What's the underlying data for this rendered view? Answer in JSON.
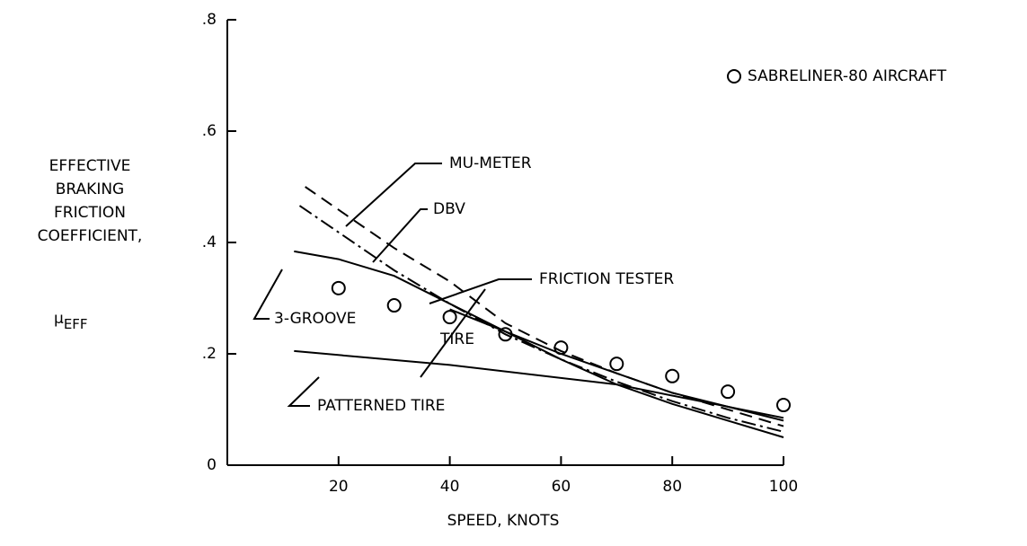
{
  "chart_data": {
    "type": "line",
    "xlabel": "SPEED, KNOTS",
    "ylabel_lines": [
      "EFFECTIVE",
      "BRAKING",
      "FRICTION",
      "COEFFICIENT,"
    ],
    "ylabel_symbol": "μ",
    "ylabel_subscript": "EFF",
    "xlim": [
      0,
      100
    ],
    "xticks": [
      20,
      40,
      60,
      80,
      100
    ],
    "ylim": [
      0,
      0.8
    ],
    "yticks": [
      0,
      {
        "value": 0.2,
        "label": ".2"
      },
      {
        "value": 0.4,
        "label": ".4"
      },
      {
        "value": 0.6,
        "label": ".6"
      },
      {
        "value": 0.8,
        "label": ".8"
      }
    ],
    "legend_position": "upper right",
    "series": [
      {
        "name": "SABRELINER-80 AIRCRAFT",
        "color": "#000000",
        "style": "markers",
        "x": [
          20,
          30,
          40,
          50,
          60,
          70,
          80,
          90,
          100
        ],
        "values": [
          0.318,
          0.287,
          0.266,
          0.235,
          0.211,
          0.182,
          0.16,
          0.132,
          0.108
        ]
      },
      {
        "color": "#000000",
        "style": "dashed",
        "x": [
          14,
          30,
          40,
          50,
          60,
          70,
          80,
          90,
          100
        ],
        "values": [
          0.5,
          0.39,
          0.33,
          0.255,
          0.205,
          0.165,
          0.13,
          0.1,
          0.07
        ]
      },
      {
        "color": "#000000",
        "style": "dashdot",
        "x": [
          13,
          30,
          40,
          50,
          60,
          70,
          80,
          90,
          100
        ],
        "values": [
          0.466,
          0.35,
          0.29,
          0.235,
          0.19,
          0.15,
          0.115,
          0.085,
          0.06
        ]
      },
      {
        "color": "#000000",
        "style": "solid",
        "x": [
          12,
          20,
          30,
          40,
          50,
          60,
          70,
          80,
          90,
          100
        ],
        "values": [
          0.384,
          0.37,
          0.34,
          0.29,
          0.24,
          0.19,
          0.145,
          0.11,
          0.08,
          0.05
        ]
      },
      {
        "color": "#000000",
        "style": "solid",
        "x": [
          40,
          50,
          60,
          70,
          80,
          90,
          100
        ],
        "values": [
          0.28,
          0.24,
          0.2,
          0.165,
          0.13,
          0.105,
          0.08
        ]
      },
      {
        "color": "#000000",
        "style": "solid",
        "x": [
          12,
          40,
          70,
          100
        ],
        "values": [
          0.205,
          0.18,
          0.145,
          0.085
        ]
      }
    ],
    "annotations": [
      "MU-METER",
      "DBV",
      "FRICTION TESTER",
      "3-GROOVE",
      "TIRE",
      "PATTERNED TIRE"
    ]
  }
}
